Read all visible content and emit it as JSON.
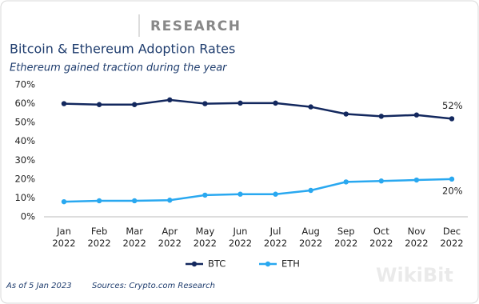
{
  "header": {
    "brand": "RESEARCH"
  },
  "chart_data": {
    "type": "line",
    "title": "Bitcoin & Ethereum Adoption Rates",
    "subtitle": "Ethereum gained traction during the year",
    "categories": [
      "Jan 2022",
      "Feb 2022",
      "Mar 2022",
      "Apr 2022",
      "May 2022",
      "Jun 2022",
      "Jul 2022",
      "Aug 2022",
      "Sep 2022",
      "Oct 2022",
      "Nov 2022",
      "Dec 2022"
    ],
    "series": [
      {
        "name": "BTC",
        "color": "#13285e",
        "values": [
          60,
          59.5,
          59.5,
          62,
          60,
          60.3,
          60.3,
          58.3,
          54.5,
          53.3,
          54,
          52
        ],
        "value_labels": [
          null,
          null,
          null,
          null,
          null,
          null,
          null,
          null,
          null,
          null,
          null,
          "52%"
        ]
      },
      {
        "name": "ETH",
        "color": "#29a8f0",
        "values": [
          8,
          8.5,
          8.5,
          8.8,
          11.5,
          12,
          12,
          14,
          18.5,
          19,
          19.5,
          20
        ],
        "value_labels": [
          null,
          null,
          null,
          null,
          null,
          null,
          null,
          null,
          null,
          null,
          null,
          "20%"
        ]
      }
    ],
    "ylim": [
      0,
      70
    ],
    "yticks": [
      {
        "value": 0,
        "label": "0%"
      },
      {
        "value": 10,
        "label": "10%"
      },
      {
        "value": 20,
        "label": "20%"
      },
      {
        "value": 30,
        "label": "30%"
      },
      {
        "value": 40,
        "label": "40%"
      },
      {
        "value": 50,
        "label": "50%"
      },
      {
        "value": 60,
        "label": "60%"
      },
      {
        "value": 70,
        "label": "70%"
      }
    ],
    "grid": false,
    "legend": "bottom"
  },
  "footer": {
    "date": "As of 5 Jan 2023",
    "sources": "Sources: Crypto.com Research"
  },
  "watermark": "WikiBit"
}
